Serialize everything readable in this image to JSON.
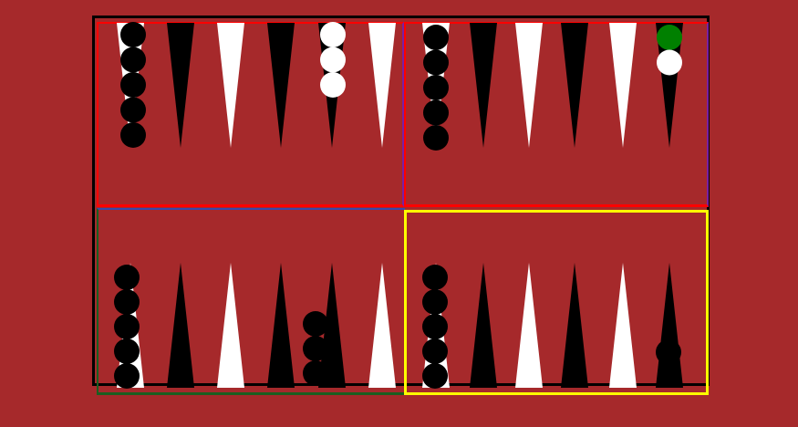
{
  "game": "backgammon",
  "colors": {
    "table": "#a6292b",
    "dark_point": "#000000",
    "light_point": "#ffffff",
    "dark_checker": "#000000",
    "light_checker": "#ffffff",
    "highlight_checker": "#008000"
  },
  "quadrants": [
    {
      "id": "top-left",
      "border_colors": [
        "#ff0000",
        "#7a1fa2"
      ]
    },
    {
      "id": "top-right",
      "border_colors": [
        "#ff0000",
        "#7a1fa2"
      ]
    },
    {
      "id": "bottom-left",
      "border_colors": [
        "#1b5e20",
        "#3949ab"
      ]
    },
    {
      "id": "bottom-right",
      "border_colors": [
        "#ffff00",
        "#1b5e20"
      ]
    }
  ],
  "points": {
    "top": [
      "white",
      "black",
      "white",
      "black",
      "black",
      "white",
      "white",
      "black",
      "white",
      "black",
      "white",
      "black"
    ],
    "bottom": [
      "white",
      "black",
      "white",
      "black",
      "black",
      "white",
      "white",
      "black",
      "white",
      "black",
      "white",
      "black"
    ]
  },
  "checkers": {
    "top": [
      {
        "point": 0,
        "dark": 5,
        "light": 0
      },
      {
        "point": 4,
        "dark": 0,
        "light": 3
      },
      {
        "point": 6,
        "dark": 5,
        "light": 0
      },
      {
        "point": 11,
        "dark": 0,
        "light": 1,
        "highlight": 1
      }
    ],
    "bottom": [
      {
        "point": 0,
        "dark": 5,
        "light": 0
      },
      {
        "point": 4,
        "dark": 3,
        "light": 0
      },
      {
        "point": 6,
        "dark": 5,
        "light": 0
      },
      {
        "point": 11,
        "dark": 1,
        "light": 0
      }
    ]
  }
}
